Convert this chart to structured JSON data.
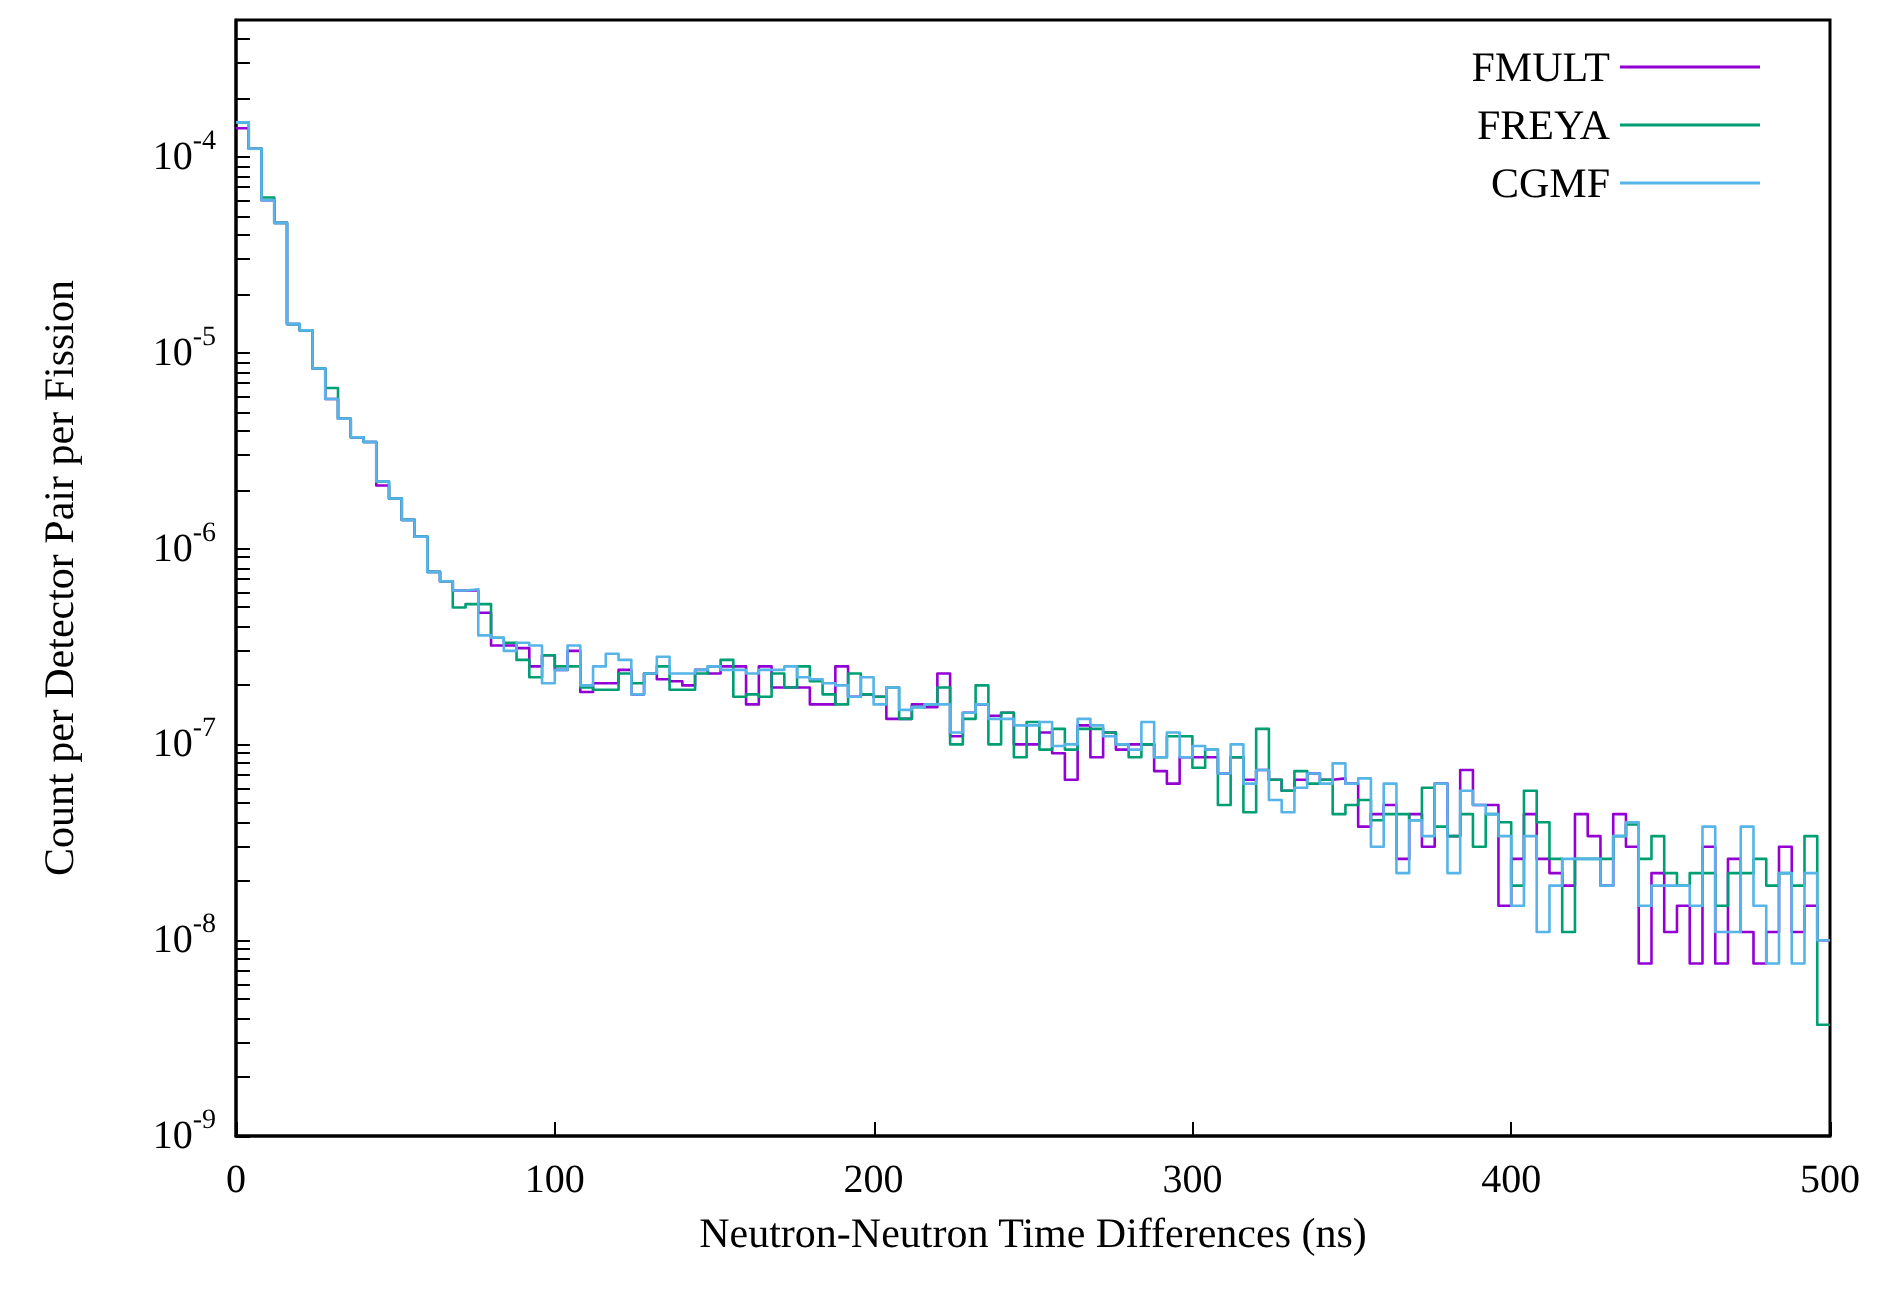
{
  "chart_data": {
    "type": "histogram",
    "xlabel": "Neutron-Neutron Time Differences (ns)",
    "ylabel": "Count per Detector Pair per Fission",
    "log": "y",
    "grid": false,
    "legend": "top right",
    "line_style": "solid",
    "marker": "none",
    "xlim": [
      0,
      500
    ],
    "xticks": [
      0,
      100,
      200,
      300,
      400,
      500
    ],
    "ylim": [
      1e-09,
      0.0005
    ],
    "yticks": [
      {
        "value": 1e-09,
        "label": "10$^{-9}$"
      },
      {
        "value": 2e-09,
        "label": null
      },
      {
        "value": 3e-09,
        "label": null
      },
      {
        "value": 4e-09,
        "label": null
      },
      {
        "value": 5e-09,
        "label": null
      },
      {
        "value": 6e-09,
        "label": null
      },
      {
        "value": 7e-09,
        "label": null
      },
      {
        "value": 8e-09,
        "label": null
      },
      {
        "value": 9e-09,
        "label": null
      },
      {
        "value": 1e-08,
        "label": "10$^{-8}$"
      },
      {
        "value": 2e-08,
        "label": null
      },
      {
        "value": 3e-08,
        "label": null
      },
      {
        "value": 4e-08,
        "label": null
      },
      {
        "value": 5e-08,
        "label": null
      },
      {
        "value": 6e-08,
        "label": null
      },
      {
        "value": 7e-08,
        "label": null
      },
      {
        "value": 8e-08,
        "label": null
      },
      {
        "value": 9e-08,
        "label": null
      },
      {
        "value": 1e-07,
        "label": "10$^{-7}$"
      },
      {
        "value": 2e-07,
        "label": null
      },
      {
        "value": 3e-07,
        "label": null
      },
      {
        "value": 4e-07,
        "label": null
      },
      {
        "value": 5e-07,
        "label": null
      },
      {
        "value": 6e-07,
        "label": null
      },
      {
        "value": 7e-07,
        "label": null
      },
      {
        "value": 8e-07,
        "label": null
      },
      {
        "value": 9e-07,
        "label": null
      },
      {
        "value": 1e-06,
        "label": "10$^{-6}$"
      },
      {
        "value": 2e-06,
        "label": null
      },
      {
        "value": 3e-06,
        "label": null
      },
      {
        "value": 4e-06,
        "label": null
      },
      {
        "value": 5e-06,
        "label": null
      },
      {
        "value": 6e-06,
        "label": null
      },
      {
        "value": 7e-06,
        "label": null
      },
      {
        "value": 8e-06,
        "label": null
      },
      {
        "value": 9e-06,
        "label": null
      },
      {
        "value": 1e-05,
        "label": "10$^{-5}$"
      },
      {
        "value": 2e-05,
        "label": null
      },
      {
        "value": 3e-05,
        "label": null
      },
      {
        "value": 4e-05,
        "label": null
      },
      {
        "value": 5e-05,
        "label": null
      },
      {
        "value": 6e-05,
        "label": null
      },
      {
        "value": 7e-05,
        "label": null
      },
      {
        "value": 8e-05,
        "label": null
      },
      {
        "value": 9e-05,
        "label": null
      },
      {
        "value": 0.0001,
        "label": "10$^{-4}$"
      },
      {
        "value": 0.0002,
        "label": null
      },
      {
        "value": 0.0003,
        "label": null
      },
      {
        "value": 0.0004,
        "label": null
      }
    ],
    "bins": [
      0,
      4,
      8,
      12,
      16,
      20,
      24,
      28,
      32,
      36,
      40,
      44,
      48,
      52,
      56,
      60,
      64,
      68,
      72,
      76,
      80,
      84,
      88,
      92,
      96,
      100,
      104,
      108,
      112,
      116,
      120,
      124,
      128,
      132,
      136,
      140,
      144,
      148,
      152,
      156,
      160,
      164,
      168,
      172,
      176,
      180,
      184,
      188,
      192,
      196,
      200,
      204,
      208,
      212,
      216,
      220,
      224,
      228,
      232,
      236,
      240,
      244,
      248,
      252,
      256,
      260,
      264,
      268,
      272,
      276,
      280,
      284,
      288,
      292,
      296,
      300,
      304,
      308,
      312,
      316,
      320,
      324,
      328,
      332,
      336,
      340,
      344,
      348,
      352,
      356,
      360,
      364,
      368,
      372,
      376,
      380,
      384,
      388,
      392,
      396,
      400,
      404,
      408,
      412,
      416,
      420,
      424,
      428,
      432,
      436,
      440,
      444,
      448,
      452,
      456,
      460,
      464,
      468,
      472,
      476,
      480,
      484,
      488,
      492,
      496,
      500
    ],
    "series": [
      {
        "name": "FMULT",
        "color": "#9400d3",
        "values": [
          0.00014,
          0.00011,
          6e-05,
          4.6e-05,
          1.4e-05,
          1.3e-05,
          8.3e-06,
          5.8e-06,
          4.6e-06,
          3.7e-06,
          3.5e-06,
          2.1e-06,
          1.8e-06,
          1.4e-06,
          1.15e-06,
          7.6e-07,
          6.8e-07,
          6.1e-07,
          6.1e-07,
          4.7e-07,
          3.2e-07,
          3.2e-07,
          3.1e-07,
          2.5e-07,
          2.85e-07,
          2.4e-07,
          3e-07,
          1.85e-07,
          2.05e-07,
          2.05e-07,
          2.4e-07,
          1.8e-07,
          2.3e-07,
          2.15e-07,
          2.1e-07,
          2e-07,
          2.4e-07,
          2.3e-07,
          2.5e-07,
          2.5e-07,
          1.6e-07,
          2.5e-07,
          1.95e-07,
          1.95e-07,
          1.95e-07,
          1.6e-07,
          1.6e-07,
          2.5e-07,
          1.75e-07,
          1.8e-07,
          1.75e-07,
          1.35e-07,
          1.35e-07,
          1.6e-07,
          1.55e-07,
          2.3e-07,
          1.1e-07,
          1.45e-07,
          1.6e-07,
          1.4e-07,
          1.45e-07,
          1e-07,
          1e-07,
          1.15e-07,
          9e-08,
          6.6e-08,
          1.25e-07,
          8.6e-08,
          1.15e-07,
          9.4e-08,
          1e-07,
          1e-07,
          7.3e-08,
          6.3e-08,
          8.6e-08,
          8.6e-08,
          8.6e-08,
          7.1e-08,
          8.6e-08,
          6.6e-08,
          7.4e-08,
          6.6e-08,
          5.8e-08,
          6.6e-08,
          7.1e-08,
          6.6e-08,
          6.7e-08,
          6.3e-08,
          3.8e-08,
          4.4e-08,
          4.9e-08,
          2.6e-08,
          4.4e-08,
          3e-08,
          6.3e-08,
          3.4e-08,
          7.4e-08,
          4.9e-08,
          4.9e-08,
          1.5e-08,
          2.6e-08,
          4.4e-08,
          2.6e-08,
          2.2e-08,
          1.9e-08,
          4.4e-08,
          3.4e-08,
          1.9e-08,
          4.4e-08,
          3e-08,
          7.6e-09,
          2.2e-08,
          1.1e-08,
          1.5e-08,
          7.6e-09,
          3e-08,
          7.6e-09,
          2.6e-08,
          1.1e-08,
          7.6e-09,
          1.1e-08,
          3e-08,
          1.1e-08,
          1.5e-08,
          1e-08
        ]
      },
      {
        "name": "FREYA",
        "color": "#009e73",
        "values": [
          0.00015,
          0.00011,
          6.2e-05,
          4.6e-05,
          1.4e-05,
          1.3e-05,
          8.3e-06,
          6.6e-06,
          4.6e-06,
          3.7e-06,
          3.5e-06,
          2.2e-06,
          1.8e-06,
          1.4e-06,
          1.15e-06,
          7.6e-07,
          6.8e-07,
          5e-07,
          5.2e-07,
          5.2e-07,
          3.5e-07,
          3.3e-07,
          2.7e-07,
          2.2e-07,
          2.85e-07,
          2.5e-07,
          2.5e-07,
          1.95e-07,
          1.9e-07,
          1.9e-07,
          2.3e-07,
          2.05e-07,
          2.3e-07,
          2.5e-07,
          1.9e-07,
          1.9e-07,
          2.3e-07,
          2.5e-07,
          2.7e-07,
          1.75e-07,
          1.8e-07,
          1.75e-07,
          2.3e-07,
          1.95e-07,
          2.5e-07,
          2.1e-07,
          1.8e-07,
          1.6e-07,
          2.3e-07,
          1.8e-07,
          1.75e-07,
          1.95e-07,
          1.35e-07,
          1.55e-07,
          1.6e-07,
          1.95e-07,
          1e-07,
          1.35e-07,
          2e-07,
          1e-07,
          1.45e-07,
          8.6e-08,
          1.3e-07,
          9.4e-08,
          1.2e-07,
          9.4e-08,
          1.2e-07,
          1.2e-07,
          1.15e-07,
          1e-07,
          8.6e-08,
          1e-07,
          8.6e-08,
          1.1e-07,
          1.1e-07,
          7.6e-08,
          9.4e-08,
          4.9e-08,
          8.6e-08,
          4.5e-08,
          1.2e-07,
          6.6e-08,
          5.8e-08,
          7.3e-08,
          6.3e-08,
          6.6e-08,
          4.4e-08,
          4.9e-08,
          5.2e-08,
          4.1e-08,
          4.4e-08,
          4.4e-08,
          4.1e-08,
          6e-08,
          3.8e-08,
          3.4e-08,
          4.4e-08,
          3e-08,
          4.4e-08,
          4e-08,
          1.9e-08,
          5.8e-08,
          4e-08,
          2.6e-08,
          1.1e-08,
          2.6e-08,
          2.6e-08,
          2.6e-08,
          3.4e-08,
          3.9e-08,
          2.6e-08,
          3.4e-08,
          2.2e-08,
          1.9e-08,
          2.2e-08,
          2.2e-08,
          1.5e-08,
          2.2e-08,
          2.2e-08,
          2.6e-08,
          1.9e-08,
          2.2e-08,
          1.9e-08,
          3.4e-08,
          3.7e-09
        ]
      },
      {
        "name": "CGMF",
        "color": "#56b4e9",
        "values": [
          0.00015,
          0.00011,
          6e-05,
          4.6e-05,
          1.4e-05,
          1.3e-05,
          8.3e-06,
          5.8e-06,
          4.6e-06,
          3.7e-06,
          3.5e-06,
          2.2e-06,
          1.8e-06,
          1.4e-06,
          1.15e-06,
          7.6e-07,
          6.8e-07,
          6.1e-07,
          6.2e-07,
          3.6e-07,
          3.5e-07,
          3e-07,
          3.3e-07,
          3.2e-07,
          2.05e-07,
          2.4e-07,
          3.2e-07,
          2e-07,
          2.5e-07,
          2.9e-07,
          2.7e-07,
          1.8e-07,
          2.3e-07,
          2.8e-07,
          2.3e-07,
          2.3e-07,
          2.4e-07,
          2.5e-07,
          2.4e-07,
          2.4e-07,
          2.3e-07,
          2.4e-07,
          2.4e-07,
          2.5e-07,
          2.2e-07,
          2.15e-07,
          2.05e-07,
          2e-07,
          1.75e-07,
          2.2e-07,
          1.6e-07,
          1.95e-07,
          1.5e-07,
          1.55e-07,
          1.6e-07,
          1.6e-07,
          1.15e-07,
          1.45e-07,
          1.6e-07,
          1.35e-07,
          1.35e-07,
          1.25e-07,
          1.25e-07,
          1.3e-07,
          9.8e-08,
          1e-07,
          1.35e-07,
          1.25e-07,
          1.1e-07,
          1e-07,
          9.4e-08,
          1.3e-07,
          8.6e-08,
          1.15e-07,
          8.6e-08,
          9.8e-08,
          9.4e-08,
          7.1e-08,
          1e-07,
          6.3e-08,
          7.4e-08,
          5.2e-08,
          4.5e-08,
          6e-08,
          7.1e-08,
          6.3e-08,
          8e-08,
          6.3e-08,
          6.7e-08,
          3e-08,
          6.3e-08,
          2.2e-08,
          4.1e-08,
          3.4e-08,
          6.3e-08,
          2.2e-08,
          5.8e-08,
          4.9e-08,
          4.4e-08,
          3.4e-08,
          1.5e-08,
          3.4e-08,
          1.1e-08,
          1.9e-08,
          2.6e-08,
          2.6e-08,
          2.6e-08,
          1.9e-08,
          3.4e-08,
          4e-08,
          1.5e-08,
          1.9e-08,
          1.9e-08,
          1.9e-08,
          1.5e-08,
          3.8e-08,
          1.1e-08,
          1.1e-08,
          3.8e-08,
          1.5e-08,
          7.6e-09,
          2.2e-08,
          7.6e-09,
          2.2e-08,
          1e-08
        ]
      }
    ]
  }
}
